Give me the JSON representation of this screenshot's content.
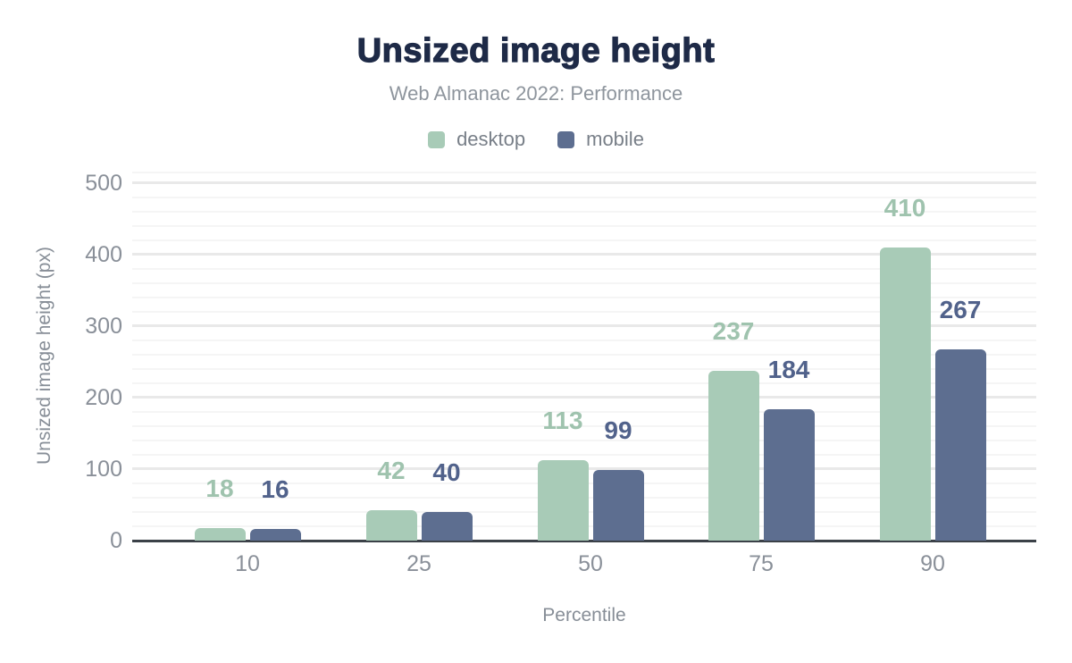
{
  "chart_data": {
    "type": "bar",
    "title": "Unsized image height",
    "subtitle": "Web Almanac 2022: Performance",
    "xlabel": "Percentile",
    "ylabel": "Unsized image height (px)",
    "categories": [
      "10",
      "25",
      "50",
      "75",
      "90"
    ],
    "series": [
      {
        "name": "desktop",
        "color": "#a8cbb7",
        "label_color": "#9fc3ae",
        "values": [
          18,
          42,
          113,
          237,
          410
        ]
      },
      {
        "name": "mobile",
        "color": "#5d6e90",
        "label_color": "#51628b",
        "values": [
          16,
          40,
          99,
          184,
          267
        ]
      }
    ],
    "ylim": [
      0,
      500
    ],
    "yticks": [
      0,
      100,
      200,
      300,
      400,
      500
    ],
    "minor_grid_step": 20,
    "grid": true,
    "legend_position": "top",
    "colors": {
      "title": "#1e2a47",
      "subtitle": "#8e959d",
      "legend_text": "#787f88",
      "tick_text": "#8a9099",
      "axis_title_text": "#878e97",
      "axis_line": "#3b4148",
      "grid_minor": "#f5f5f5",
      "grid_major": "#e9e9e9",
      "background": "#ffffff"
    }
  }
}
